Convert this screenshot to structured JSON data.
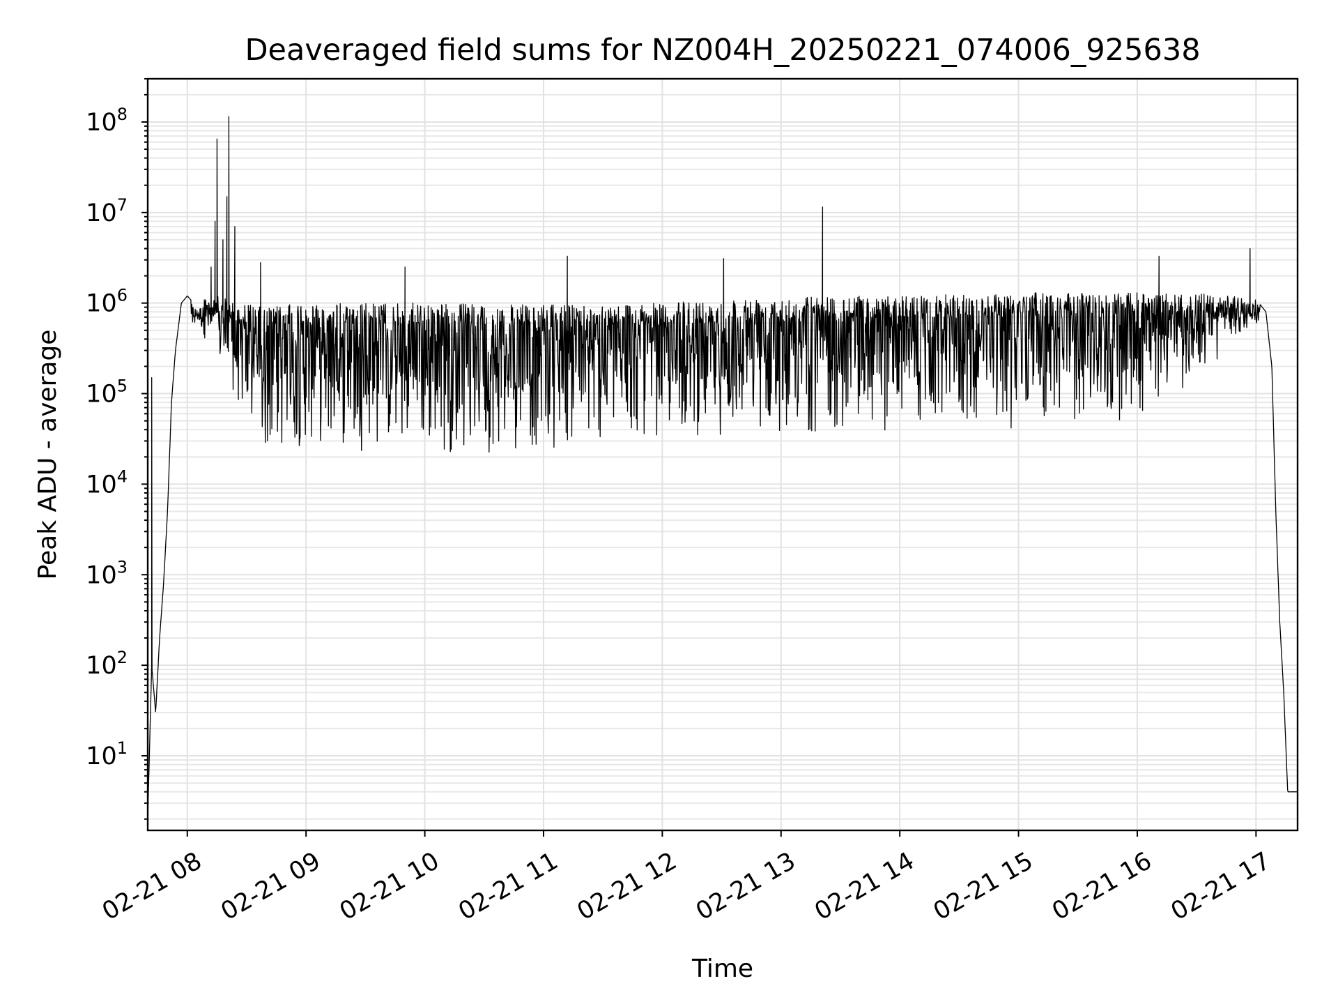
{
  "chart_data": {
    "type": "line",
    "title": "Deaveraged field sums for NZ004H_20250221_074006_925638",
    "xlabel": "Time",
    "ylabel": "Peak ADU - average",
    "yscale": "log",
    "ylim": [
      1.5,
      300000000
    ],
    "xlim": [
      "2025-02-21 07:40",
      "2025-02-21 17:21"
    ],
    "grid": "both (major and minor)",
    "x_tick_labels": [
      "02-21 08",
      "02-21 09",
      "02-21 10",
      "02-21 11",
      "02-21 12",
      "02-21 13",
      "02-21 14",
      "02-21 15",
      "02-21 16",
      "02-21 17"
    ],
    "y_tick_labels": [
      {
        "base": "10",
        "exp": "1"
      },
      {
        "base": "10",
        "exp": "2"
      },
      {
        "base": "10",
        "exp": "3"
      },
      {
        "base": "10",
        "exp": "4"
      },
      {
        "base": "10",
        "exp": "5"
      },
      {
        "base": "10",
        "exp": "6"
      },
      {
        "base": "10",
        "exp": "7"
      },
      {
        "base": "10",
        "exp": "8"
      }
    ],
    "series": [
      {
        "color": "#000000",
        "baseline": {
          "x": [
            "2025-02-21 07:40",
            "2025-02-21 07:42",
            "2025-02-21 07:44",
            "2025-02-21 07:46",
            "2025-02-21 07:48",
            "2025-02-21 07:50",
            "2025-02-21 07:52",
            "2025-02-21 07:54",
            "2025-02-21 07:57",
            "2025-02-21 08:00",
            "2025-02-21 08:05",
            "2025-02-21 08:10",
            "2025-02-21 08:20",
            "2025-02-21 08:30",
            "2025-02-21 08:37",
            "2025-02-21 09:00",
            "2025-02-21 10:00",
            "2025-02-21 11:00",
            "2025-02-21 12:00",
            "2025-02-21 13:00",
            "2025-02-21 14:00",
            "2025-02-21 15:00",
            "2025-02-21 16:00",
            "2025-02-21 16:40",
            "2025-02-21 17:00",
            "2025-02-21 17:05",
            "2025-02-21 17:08",
            "2025-02-21 17:10",
            "2025-02-21 17:12",
            "2025-02-21 17:14",
            "2025-02-21 17:16",
            "2025-02-21 17:21"
          ],
          "y": [
            2,
            100,
            30,
            200,
            800,
            5000,
            80000,
            300000,
            1000000,
            1200000,
            900000,
            1300000,
            1100000,
            1000000,
            900000,
            1000000,
            1000000,
            950000,
            1000000,
            1200000,
            1200000,
            1300000,
            1300000,
            1250000,
            1100000,
            800000,
            200000,
            5000,
            300,
            50,
            4,
            4
          ]
        },
        "band_lows": [
          {
            "x": "2025-02-21 08:05",
            "y": 600000
          },
          {
            "x": "2025-02-21 08:15",
            "y": 200000
          },
          {
            "x": "2025-02-21 08:25",
            "y": 70000
          },
          {
            "x": "2025-02-21 08:37",
            "y": 15000
          },
          {
            "x": "2025-02-21 09:00",
            "y": 25000
          },
          {
            "x": "2025-02-21 10:00",
            "y": 20000
          },
          {
            "x": "2025-02-21 11:00",
            "y": 22000
          },
          {
            "x": "2025-02-21 12:00",
            "y": 30000
          },
          {
            "x": "2025-02-21 13:00",
            "y": 35000
          },
          {
            "x": "2025-02-21 14:00",
            "y": 35000
          },
          {
            "x": "2025-02-21 15:00",
            "y": 40000
          },
          {
            "x": "2025-02-21 16:00",
            "y": 45000
          },
          {
            "x": "2025-02-21 16:40",
            "y": 200000
          },
          {
            "x": "2025-02-21 17:00",
            "y": 600000
          }
        ],
        "peaks": [
          {
            "x": "2025-02-21 07:42",
            "y": 150000
          },
          {
            "x": "2025-02-21 08:12",
            "y": 2500000
          },
          {
            "x": "2025-02-21 08:14",
            "y": 8000000
          },
          {
            "x": "2025-02-21 08:15",
            "y": 65000000
          },
          {
            "x": "2025-02-21 08:18",
            "y": 5000000
          },
          {
            "x": "2025-02-21 08:20",
            "y": 15000000
          },
          {
            "x": "2025-02-21 08:21",
            "y": 115000000
          },
          {
            "x": "2025-02-21 08:24",
            "y": 7000000
          },
          {
            "x": "2025-02-21 08:37",
            "y": 2800000
          },
          {
            "x": "2025-02-21 09:50",
            "y": 2500000
          },
          {
            "x": "2025-02-21 11:12",
            "y": 3300000
          },
          {
            "x": "2025-02-21 12:31",
            "y": 3100000
          },
          {
            "x": "2025-02-21 13:21",
            "y": 11500000
          },
          {
            "x": "2025-02-21 16:11",
            "y": 3300000
          },
          {
            "x": "2025-02-21 16:57",
            "y": 4000000
          }
        ]
      }
    ]
  }
}
